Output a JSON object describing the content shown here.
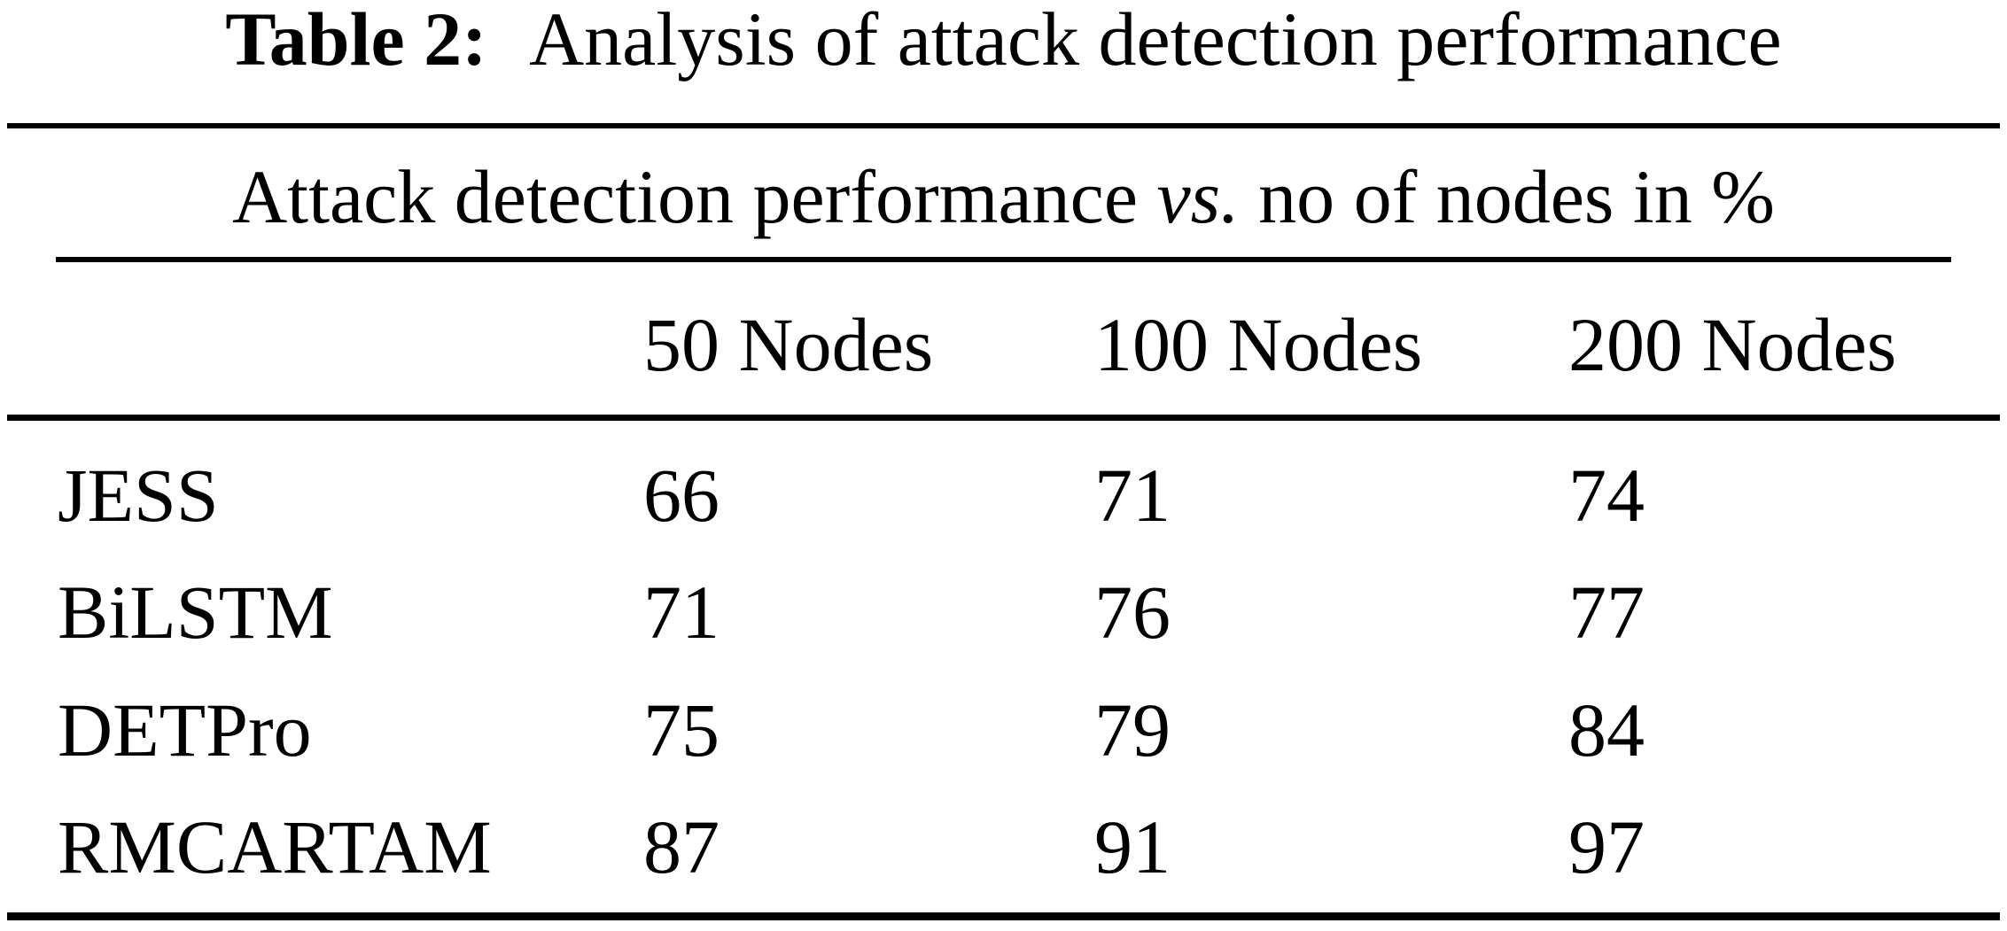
{
  "caption": {
    "label": "Table 2:",
    "text": "Analysis of attack detection performance"
  },
  "subtitle": {
    "pre": "Attack detection performance",
    "vs": "vs.",
    "post": "no of nodes in %"
  },
  "columns": [
    "50 Nodes",
    "100 Nodes",
    "200 Nodes"
  ],
  "rows": [
    {
      "label": "JESS",
      "values": [
        66,
        71,
        74
      ]
    },
    {
      "label": "BiLSTM",
      "values": [
        71,
        76,
        77
      ]
    },
    {
      "label": "DETPro",
      "values": [
        75,
        79,
        84
      ]
    },
    {
      "label": "RMCARTAM",
      "values": [
        87,
        91,
        97
      ]
    }
  ],
  "chart_data": {
    "type": "table",
    "title": "Table 2: Analysis of attack detection performance",
    "subtitle": "Attack detection performance vs. no of nodes in %",
    "categories": [
      "50 Nodes",
      "100 Nodes",
      "200 Nodes"
    ],
    "series": [
      {
        "name": "JESS",
        "values": [
          66,
          71,
          74
        ]
      },
      {
        "name": "BiLSTM",
        "values": [
          71,
          76,
          77
        ]
      },
      {
        "name": "DETPro",
        "values": [
          75,
          79,
          84
        ]
      },
      {
        "name": "RMCARTAM",
        "values": [
          87,
          91,
          97
        ]
      }
    ],
    "unit": "%"
  },
  "colors": {
    "text": "#000000",
    "background": "#ffffff",
    "rule": "#000000"
  }
}
